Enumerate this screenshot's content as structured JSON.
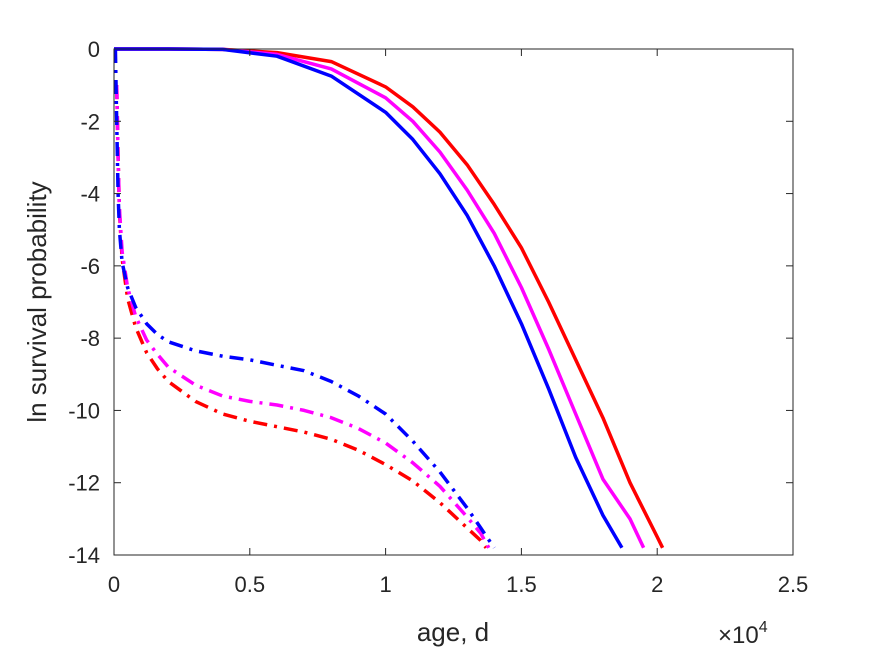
{
  "chart_data": {
    "type": "line",
    "title": "",
    "xlabel": "age, d",
    "ylabel": "ln survival probability",
    "x_exponent_label": {
      "base": "×10",
      "power": "4"
    },
    "xlim": [
      0,
      25000
    ],
    "ylim": [
      -14,
      0
    ],
    "xticks": [
      0,
      5000,
      10000,
      15000,
      20000,
      25000
    ],
    "xtick_labels": [
      "0",
      "0.5",
      "1",
      "1.5",
      "2",
      "2.5"
    ],
    "yticks": [
      0,
      -2,
      -4,
      -6,
      -8,
      -10,
      -12,
      -14
    ],
    "ytick_labels": [
      "0",
      "-2",
      "-4",
      "-6",
      "-8",
      "-10",
      "-12",
      "-14"
    ],
    "grid": false,
    "box": true,
    "series": [
      {
        "color": "#ff0000",
        "style": "solid",
        "x": [
          0,
          100,
          2000,
          4000,
          6000,
          8000,
          10000,
          11000,
          12000,
          13000,
          14000,
          15000,
          16000,
          17000,
          18000,
          19000,
          20000,
          20200
        ],
        "y": [
          0,
          0,
          0,
          -0.01,
          -0.1,
          -0.35,
          -1.05,
          -1.6,
          -2.3,
          -3.2,
          -4.3,
          -5.5,
          -7.0,
          -8.6,
          -10.2,
          -12.0,
          -13.5,
          -13.8
        ]
      },
      {
        "color": "#ff00ff",
        "style": "solid",
        "x": [
          0,
          100,
          2000,
          4000,
          6000,
          8000,
          10000,
          11000,
          12000,
          13000,
          14000,
          15000,
          16000,
          17000,
          18000,
          19000,
          19500
        ],
        "y": [
          0,
          0,
          0,
          -0.01,
          -0.15,
          -0.55,
          -1.35,
          -2.0,
          -2.85,
          -3.9,
          -5.1,
          -6.6,
          -8.3,
          -10.1,
          -11.9,
          -13.0,
          -13.8
        ]
      },
      {
        "color": "#0000ff",
        "style": "solid",
        "x": [
          0,
          100,
          2000,
          4000,
          6000,
          8000,
          10000,
          11000,
          12000,
          13000,
          14000,
          15000,
          16000,
          17000,
          18000,
          18700
        ],
        "y": [
          0,
          0,
          0,
          -0.01,
          -0.2,
          -0.75,
          -1.75,
          -2.5,
          -3.45,
          -4.6,
          -6.0,
          -7.6,
          -9.4,
          -11.3,
          -12.9,
          -13.8
        ]
      },
      {
        "color": "#ff0000",
        "style": "dashdot",
        "x": [
          100,
          150,
          200,
          300,
          500,
          800,
          1200,
          1600,
          2000,
          3000,
          4000,
          5000,
          6000,
          7000,
          8000,
          9000,
          10000,
          11000,
          12000,
          13000,
          13500,
          13700
        ],
        "y": [
          -1.0,
          -3.0,
          -4.5,
          -5.8,
          -6.9,
          -7.7,
          -8.4,
          -8.85,
          -9.2,
          -9.75,
          -10.1,
          -10.3,
          -10.45,
          -10.6,
          -10.8,
          -11.1,
          -11.5,
          -11.95,
          -12.55,
          -13.25,
          -13.6,
          -13.8
        ]
      },
      {
        "color": "#ff00ff",
        "style": "dashdot",
        "x": [
          100,
          150,
          200,
          300,
          500,
          800,
          1200,
          1600,
          2000,
          3000,
          4000,
          5000,
          6000,
          7000,
          8000,
          9000,
          10000,
          11000,
          12000,
          13000,
          13500,
          13800
        ],
        "y": [
          -1.0,
          -3.0,
          -4.4,
          -5.6,
          -6.6,
          -7.4,
          -8.05,
          -8.45,
          -8.8,
          -9.3,
          -9.6,
          -9.75,
          -9.85,
          -10.0,
          -10.2,
          -10.5,
          -10.9,
          -11.45,
          -12.1,
          -12.95,
          -13.4,
          -13.8
        ]
      },
      {
        "color": "#0000ff",
        "style": "dashdot",
        "x": [
          50,
          100,
          150,
          200,
          300,
          500,
          800,
          1200,
          1600,
          2000,
          3000,
          4000,
          5000,
          6000,
          7000,
          8000,
          9000,
          10000,
          11000,
          12000,
          13000,
          13500,
          14000
        ],
        "y": [
          0,
          -2.0,
          -4.0,
          -5.0,
          -5.9,
          -6.6,
          -7.15,
          -7.6,
          -7.9,
          -8.1,
          -8.35,
          -8.5,
          -8.6,
          -8.75,
          -8.9,
          -9.2,
          -9.6,
          -10.1,
          -10.85,
          -11.7,
          -12.7,
          -13.25,
          -13.8
        ]
      }
    ]
  }
}
